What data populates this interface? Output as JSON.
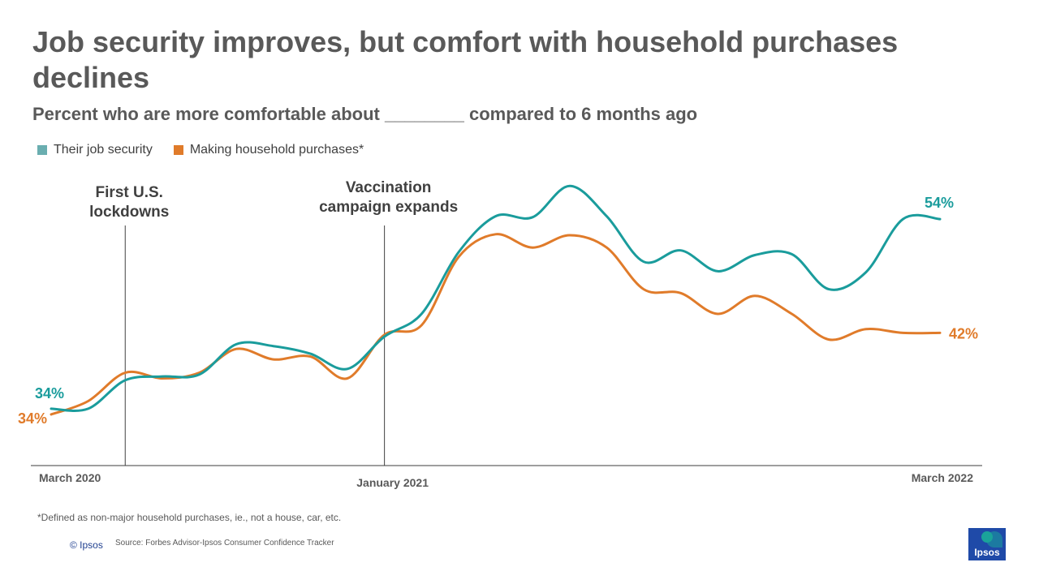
{
  "title": "Job security improves, but comfort with household purchases declines",
  "subtitle": "Percent who are more comfortable about ________ compared to 6 months ago",
  "legend": [
    {
      "label": "Their job security",
      "color": "#6aaeb0"
    },
    {
      "label": "Making household purchases*",
      "color": "#e07b2a"
    }
  ],
  "footnote": "*Defined as non-major household purchases, ie., not a house, car, etc.",
  "copyright": "© Ipsos",
  "source": "Source: Forbes Advisor-Ipsos Consumer Confidence Tracker",
  "logo_text": "Ipsos",
  "chart_data": {
    "type": "line",
    "x": [
      1,
      2,
      3,
      4,
      5,
      6,
      7,
      8,
      9,
      10,
      11,
      12,
      13,
      14,
      15,
      16,
      17,
      18,
      19,
      20,
      21,
      22,
      23,
      24,
      25
    ],
    "series": [
      {
        "name": "Their job security",
        "color": "#1a9c9c",
        "values": [
          34,
          34,
          37,
          37.4,
          37.6,
          40.8,
          40.6,
          39.8,
          38.2,
          41.6,
          44,
          50.5,
          54.3,
          54.2,
          57.5,
          54.3,
          49.5,
          50.7,
          48.5,
          50.2,
          50.3,
          46.6,
          48.4,
          54,
          54
        ]
      },
      {
        "name": "Making household purchases*",
        "color": "#e07b2a",
        "values": [
          33.4,
          34.8,
          37.8,
          37.2,
          37.8,
          40.3,
          39.2,
          39.5,
          37.2,
          41.8,
          42.8,
          50,
          52.4,
          51,
          52.3,
          51,
          46.6,
          46.2,
          44,
          45.9,
          44,
          41.3,
          42.4,
          42,
          42
        ]
      }
    ],
    "x_labels": [
      {
        "x": 1,
        "label": "March 2020"
      },
      {
        "x": 10,
        "label": "January 2021"
      },
      {
        "x": 25,
        "label": "March 2022"
      }
    ],
    "annotations": [
      {
        "x": 3,
        "label": "First U.S. lockdowns"
      },
      {
        "x": 10,
        "label": "Vaccination campaign expands"
      }
    ],
    "end_labels": {
      "job_start": "34%",
      "job_end": "54%",
      "purchase_start": "34%",
      "purchase_end": "42%"
    },
    "ylim": [
      28,
      60
    ],
    "grid": false
  }
}
